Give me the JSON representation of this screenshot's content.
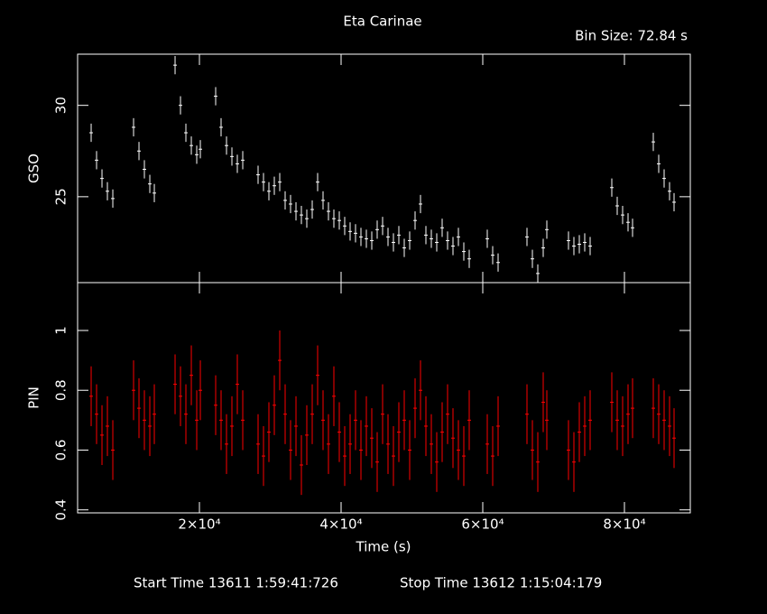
{
  "chart_data": [
    {
      "type": "scatter",
      "title": "Eta Carinae",
      "annotation": "Bin Size: 72.84 s",
      "ylabel": "GSO",
      "color": "#ffffff",
      "xlim": [
        2800,
        89300
      ],
      "xticks": [
        20000,
        40000,
        60000,
        80000
      ],
      "ylim": [
        20.3,
        32.8
      ],
      "yticks": [
        25,
        30
      ],
      "error": 0.5,
      "x": [
        4713,
        5478,
        6242,
        7006,
        7771,
        10701,
        11465,
        12229,
        12994,
        13631,
        16561,
        17325,
        18089,
        18854,
        19618,
        20128,
        22293,
        23057,
        23822,
        24586,
        25350,
        26115,
        28280,
        29045,
        29809,
        30573,
        31338,
        32102,
        32866,
        33631,
        34395,
        35159,
        35924,
        36688,
        37452,
        38217,
        38981,
        39745,
        40510,
        41274,
        42038,
        42803,
        43567,
        44331,
        45096,
        45860,
        46624,
        47389,
        48153,
        48917,
        49682,
        50446,
        51210,
        51975,
        52739,
        53503,
        54268,
        55032,
        55796,
        56561,
        57325,
        58089,
        60637,
        61401,
        62166,
        66242,
        67006,
        67771,
        68535,
        69045,
        72102,
        72866,
        73631,
        74395,
        75159,
        78217,
        78981,
        79745,
        80510,
        81146,
        84076,
        84841,
        85605,
        86369,
        87006
      ],
      "values": [
        28.5,
        27,
        26,
        25.3,
        24.9,
        28.8,
        27.5,
        26.5,
        25.7,
        25.2,
        32.2,
        30,
        28.5,
        27.8,
        27.3,
        27.6,
        30.5,
        28.8,
        27.8,
        27.2,
        26.8,
        27,
        26.2,
        25.8,
        25.3,
        25.6,
        25.8,
        24.8,
        24.6,
        24.2,
        24,
        23.8,
        24.3,
        25.8,
        24.8,
        24.2,
        23.8,
        23.7,
        23.4,
        23.1,
        23,
        22.8,
        22.7,
        22.6,
        23.2,
        23.4,
        22.8,
        22.5,
        22.9,
        22.2,
        22.6,
        23.7,
        24.6,
        22.9,
        22.7,
        22.5,
        23.3,
        22.6,
        22.3,
        22.8,
        22,
        21.6,
        22.7,
        21.8,
        21.4,
        22.8,
        21.6,
        20.8,
        22.2,
        23.2,
        22.6,
        22.3,
        22.4,
        22.5,
        22.3,
        25.5,
        24.5,
        24,
        23.6,
        23.3,
        28,
        26.8,
        26,
        25.3,
        24.7
      ]
    },
    {
      "type": "scatter",
      "ylabel": "PIN",
      "xlabel": "Time (s)",
      "color": "#ff0000",
      "annotations": [
        "Start Time 13611  1:59:41:726",
        "Stop Time 13612  1:15:04:179"
      ],
      "xlim": [
        2800,
        89300
      ],
      "xticks": [
        {
          "value": 20000,
          "label": "2×10⁴"
        },
        {
          "value": 40000,
          "label": "4×10⁴"
        },
        {
          "value": 60000,
          "label": "6×10⁴"
        },
        {
          "value": 80000,
          "label": "8×10⁴"
        }
      ],
      "ylim": [
        0.39,
        1.16
      ],
      "yticks": [
        0.4,
        0.6,
        0.8,
        1
      ],
      "error": 0.1,
      "x": [
        4713,
        5478,
        6242,
        7006,
        7771,
        10701,
        11465,
        12229,
        12994,
        13631,
        16561,
        17325,
        18089,
        18854,
        19618,
        20128,
        22293,
        23057,
        23822,
        24586,
        25350,
        26115,
        28280,
        29045,
        29809,
        30573,
        31338,
        32102,
        32866,
        33631,
        34395,
        35159,
        35924,
        36688,
        37452,
        38217,
        38981,
        39745,
        40510,
        41274,
        42038,
        42803,
        43567,
        44331,
        45096,
        45860,
        46624,
        47389,
        48153,
        48917,
        49682,
        50446,
        51210,
        51975,
        52739,
        53503,
        54268,
        55032,
        55796,
        56561,
        57325,
        58089,
        60637,
        61401,
        62166,
        66242,
        67006,
        67771,
        68535,
        69045,
        72102,
        72866,
        73631,
        74395,
        75159,
        78217,
        78981,
        79745,
        80510,
        81146,
        84076,
        84841,
        85605,
        86369,
        87006
      ],
      "values": [
        0.78,
        0.72,
        0.65,
        0.68,
        0.6,
        0.8,
        0.74,
        0.7,
        0.68,
        0.72,
        0.82,
        0.78,
        0.72,
        0.85,
        0.7,
        0.8,
        0.75,
        0.7,
        0.62,
        0.68,
        0.82,
        0.7,
        0.62,
        0.58,
        0.66,
        0.75,
        0.9,
        0.72,
        0.6,
        0.68,
        0.55,
        0.65,
        0.72,
        0.85,
        0.7,
        0.62,
        0.78,
        0.66,
        0.58,
        0.62,
        0.7,
        0.6,
        0.68,
        0.64,
        0.56,
        0.72,
        0.62,
        0.58,
        0.66,
        0.7,
        0.6,
        0.74,
        0.8,
        0.68,
        0.62,
        0.56,
        0.66,
        0.72,
        0.64,
        0.6,
        0.58,
        0.7,
        0.62,
        0.58,
        0.68,
        0.72,
        0.6,
        0.56,
        0.76,
        0.7,
        0.6,
        0.56,
        0.66,
        0.68,
        0.7,
        0.76,
        0.7,
        0.68,
        0.72,
        0.74,
        0.74,
        0.72,
        0.7,
        0.68,
        0.64
      ]
    }
  ]
}
